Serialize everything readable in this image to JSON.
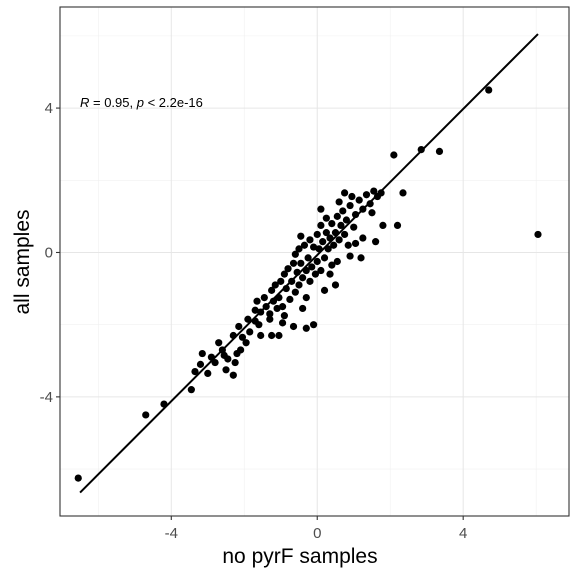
{
  "chart_data": {
    "type": "scatter",
    "title": "",
    "xlabel": "no pyrF samples",
    "ylabel": "all samples",
    "xlim": [
      -7.05,
      6.9
    ],
    "ylim": [
      -7.3,
      6.8
    ],
    "x_ticks": [
      -4,
      0,
      4
    ],
    "y_ticks": [
      -4,
      0,
      4
    ],
    "x_tick_labels": [
      "-4",
      "0",
      "4"
    ],
    "y_tick_labels": [
      "-4",
      "0",
      "4"
    ],
    "grid": true,
    "legend": "none",
    "annotation": {
      "r_label": "R",
      "r_text": " = 0.95, ",
      "p_label": "p",
      "p_text": " < 2.2e-16"
    },
    "regression_line": {
      "x": [
        -6.5,
        6.05
      ],
      "y": [
        -6.65,
        6.05
      ]
    },
    "series": [
      {
        "points": [
          [
            -6.55,
            -6.25
          ],
          [
            -4.7,
            -4.5
          ],
          [
            -4.2,
            -4.2
          ],
          [
            -3.45,
            -3.8
          ],
          [
            -3.35,
            -3.3
          ],
          [
            -3.2,
            -3.1
          ],
          [
            -3.15,
            -2.8
          ],
          [
            -3.0,
            -3.35
          ],
          [
            -2.9,
            -2.9
          ],
          [
            -2.8,
            -3.05
          ],
          [
            -2.6,
            -2.7
          ],
          [
            -2.5,
            -3.25
          ],
          [
            -2.45,
            -2.95
          ],
          [
            -2.3,
            -3.4
          ],
          [
            -2.25,
            -3.05
          ],
          [
            -2.2,
            -2.8
          ],
          [
            -2.1,
            -2.7
          ],
          [
            -2.15,
            -2.05
          ],
          [
            -1.95,
            -2.5
          ],
          [
            -1.85,
            -2.2
          ],
          [
            -1.7,
            -1.9
          ],
          [
            -1.55,
            -2.3
          ],
          [
            -1.3,
            -1.85
          ],
          [
            -1.05,
            -2.3
          ],
          [
            -0.9,
            -1.75
          ],
          [
            -0.65,
            -2.05
          ],
          [
            -0.3,
            -2.1
          ],
          [
            -0.1,
            -2.0
          ],
          [
            -1.7,
            -1.6
          ],
          [
            -1.65,
            -1.35
          ],
          [
            -1.55,
            -1.65
          ],
          [
            -1.45,
            -1.25
          ],
          [
            -1.4,
            -1.5
          ],
          [
            -1.25,
            -1.05
          ],
          [
            -1.2,
            -1.35
          ],
          [
            -1.15,
            -0.9
          ],
          [
            -1.05,
            -1.25
          ],
          [
            -1.0,
            -0.8
          ],
          [
            -0.95,
            -1.5
          ],
          [
            -0.9,
            -0.6
          ],
          [
            -0.85,
            -1.0
          ],
          [
            -0.8,
            -0.45
          ],
          [
            -0.75,
            -1.3
          ],
          [
            -0.7,
            -0.8
          ],
          [
            -0.65,
            -0.3
          ],
          [
            -0.6,
            -1.1
          ],
          [
            -0.55,
            -0.55
          ],
          [
            -0.5,
            -0.9
          ],
          [
            -0.5,
            0.1
          ],
          [
            -0.45,
            -0.3
          ],
          [
            -0.4,
            -0.7
          ],
          [
            -0.35,
            0.2
          ],
          [
            -0.3,
            -0.5
          ],
          [
            -0.3,
            -1.25
          ],
          [
            -0.25,
            -0.15
          ],
          [
            -0.2,
            0.35
          ],
          [
            -0.2,
            -0.8
          ],
          [
            -0.15,
            -0.4
          ],
          [
            -0.1,
            0.15
          ],
          [
            -0.05,
            -0.6
          ],
          [
            0.0,
            0.5
          ],
          [
            0.0,
            -0.25
          ],
          [
            0.05,
            0.1
          ],
          [
            0.1,
            -0.5
          ],
          [
            0.1,
            0.75
          ],
          [
            0.15,
            0.3
          ],
          [
            0.2,
            -0.15
          ],
          [
            0.25,
            0.55
          ],
          [
            0.25,
            0.95
          ],
          [
            0.3,
            0.1
          ],
          [
            0.35,
            0.4
          ],
          [
            0.4,
            -0.35
          ],
          [
            0.4,
            0.8
          ],
          [
            0.45,
            0.2
          ],
          [
            0.5,
            0.55
          ],
          [
            0.55,
            1.0
          ],
          [
            0.6,
            0.35
          ],
          [
            0.65,
            0.75
          ],
          [
            0.7,
            1.15
          ],
          [
            0.75,
            0.5
          ],
          [
            0.8,
            0.9
          ],
          [
            0.85,
            0.2
          ],
          [
            0.9,
            1.3
          ],
          [
            1.0,
            0.7
          ],
          [
            1.05,
            1.05
          ],
          [
            1.15,
            1.45
          ],
          [
            1.25,
            1.2
          ],
          [
            1.35,
            1.6
          ],
          [
            1.45,
            1.35
          ],
          [
            1.55,
            1.7
          ],
          [
            1.65,
            1.55
          ],
          [
            1.75,
            1.65
          ],
          [
            0.35,
            -0.6
          ],
          [
            0.55,
            -0.25
          ],
          [
            0.9,
            -0.1
          ],
          [
            1.05,
            0.25
          ],
          [
            1.2,
            -0.15
          ],
          [
            1.25,
            0.4
          ],
          [
            1.6,
            0.3
          ],
          [
            1.8,
            0.75
          ],
          [
            2.2,
            0.75
          ],
          [
            2.35,
            1.65
          ],
          [
            2.1,
            2.7
          ],
          [
            2.85,
            2.85
          ],
          [
            3.35,
            2.8
          ],
          [
            4.7,
            4.5
          ],
          [
            6.05,
            0.5
          ],
          [
            -0.6,
            -0.05
          ],
          [
            -0.45,
            0.45
          ],
          [
            0.5,
            -0.9
          ],
          [
            0.2,
            -1.05
          ],
          [
            -0.95,
            -1.95
          ],
          [
            -1.25,
            -2.3
          ],
          [
            -1.6,
            -2.0
          ],
          [
            -1.9,
            -1.85
          ],
          [
            -2.05,
            -2.35
          ],
          [
            -2.3,
            -2.3
          ],
          [
            -2.7,
            -2.5
          ],
          [
            -2.55,
            -2.85
          ],
          [
            -1.3,
            -1.7
          ],
          [
            -1.1,
            -1.55
          ],
          [
            -0.4,
            -1.55
          ],
          [
            0.1,
            1.2
          ],
          [
            0.6,
            1.4
          ],
          [
            0.95,
            1.55
          ],
          [
            1.5,
            1.1
          ],
          [
            0.75,
            1.65
          ]
        ]
      }
    ]
  }
}
